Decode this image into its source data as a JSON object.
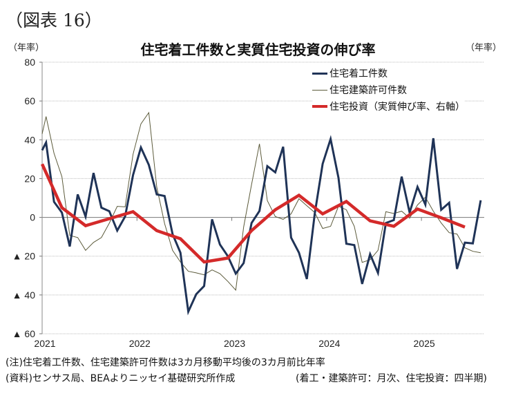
{
  "figure_label": "（図表 16）",
  "chart_data": {
    "type": "line",
    "title": "住宅着工件数と実質住宅投資の伸び率",
    "ylabel_left": "（年率）",
    "ylabel_right": "（年率）",
    "ylim": [
      -60,
      80
    ],
    "yticks": [
      80,
      60,
      40,
      20,
      0,
      -20,
      -40,
      -60
    ],
    "ytick_labels": [
      "80",
      "60",
      "40",
      "20",
      "0",
      "▲ 20",
      "▲ 40",
      "▲ 60"
    ],
    "x_unit": "months since Jan 2021",
    "xlim": [
      0,
      56.5
    ],
    "xticks": [
      0,
      12,
      24,
      36,
      48
    ],
    "xtick_labels": [
      "2021",
      "2022",
      "2023",
      "2024",
      "2025"
    ],
    "grid": true,
    "legend_position": "top-right",
    "series": [
      {
        "name": "住宅着工件数",
        "color": "#1f3357",
        "style": "thick",
        "start_value": 34.6,
        "x_start": 0.5,
        "x_step": 1,
        "values": [
          38.6,
          8,
          2.5,
          -15,
          11.8,
          0.4,
          22.9,
          5,
          3.2,
          -6.8,
          0.4,
          21.8,
          36,
          27.1,
          11.8,
          11,
          -8.6,
          -18.2,
          -48.6,
          -39.6,
          -35.4,
          -1,
          -14,
          -20,
          -29,
          -23.6,
          -2.9,
          3.3,
          26.4,
          23.2,
          36.4,
          -10.4,
          -18.2,
          -31.8,
          2,
          27.6,
          40.4,
          20.4,
          -13.6,
          -14.3,
          -34.3,
          -19,
          -28.6,
          -2.9,
          -1.4,
          21,
          2.5,
          15.7,
          6.6,
          40.8,
          3.9,
          7.5,
          -26.6,
          -13,
          -13.4,
          8.8
        ]
      },
      {
        "name": "住宅建築許可件数",
        "color": "#5b5a3a",
        "style": "thin",
        "start_value": 43,
        "x_start": 0.5,
        "x_step": 1,
        "values": [
          52,
          33,
          21,
          -9.3,
          -10.4,
          -17,
          -12.9,
          -10.4,
          -3,
          5.7,
          5.4,
          32.5,
          48.2,
          54,
          15.7,
          -3.2,
          -17,
          -23,
          -27.8,
          -28.6,
          -29.6,
          -27.1,
          -29,
          -33,
          -37.5,
          -5,
          17,
          37.9,
          8.6,
          0.4,
          -1,
          1.8,
          9.6,
          6,
          2.5,
          -5.7,
          -4.6,
          5.7,
          3.9,
          -4.6,
          -23.2,
          -21.8,
          -17,
          2.9,
          2,
          3.2,
          -0.4,
          6.4,
          10.4,
          3.2,
          -2.9,
          -7.9,
          -8.6,
          -15.7,
          -17.5,
          -18.2
        ]
      },
      {
        "name": "住宅投資（実質伸び率、右軸）",
        "color": "#d42a2a",
        "style": "thick",
        "start_value": 27.5,
        "x_start": 2.5,
        "x_step": 3,
        "values": [
          5,
          -4.3,
          -0.7,
          2.9,
          -6.8,
          -11,
          -23,
          -21,
          -6.8,
          3.9,
          11.4,
          1.8,
          8.2,
          -1.8,
          -4.6,
          4.3,
          -0.2,
          -5
        ]
      }
    ]
  },
  "notes": {
    "note": "(注)住宅着工件数、住宅建築許可件数は3カ月移動平均後の3カ月前比年率",
    "source": "(資料)センサス局、BEAよりニッセイ基礎研究所作成",
    "frequency": "(着工・建築許可：月次、住宅投資：四半期)"
  }
}
